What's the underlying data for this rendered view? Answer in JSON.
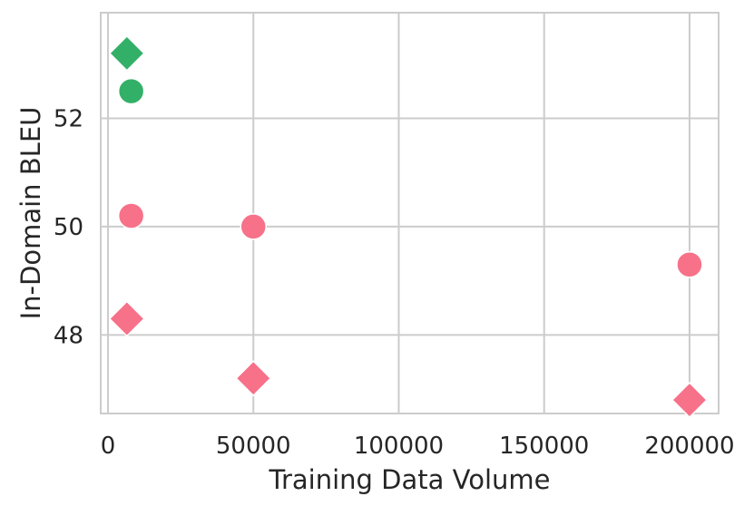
{
  "chart_data": {
    "type": "scatter",
    "title": "",
    "xlabel": "Training Data Volume",
    "ylabel": "In-Domain BLEU",
    "xlim": [
      -2500,
      210000
    ],
    "ylim": [
      46.55,
      53.95
    ],
    "xticks": [
      0,
      50000,
      100000,
      150000,
      200000
    ],
    "xtick_labels": [
      "0",
      "50000",
      "100000",
      "150000",
      "200000"
    ],
    "yticks": [
      48,
      50,
      52
    ],
    "ytick_labels": [
      "48",
      "50",
      "52"
    ],
    "grid": true,
    "legend": "none",
    "series": [
      {
        "color": "#f77189",
        "marker": "circle",
        "points": [
          {
            "x": 8000,
            "y": 50.2
          },
          {
            "x": 50000,
            "y": 50.0
          },
          {
            "x": 200000,
            "y": 49.3
          }
        ]
      },
      {
        "color": "#f77189",
        "marker": "diamond",
        "points": [
          {
            "x": 6500,
            "y": 48.3
          },
          {
            "x": 50000,
            "y": 47.2
          },
          {
            "x": 200000,
            "y": 46.8
          }
        ]
      },
      {
        "color": "#33b068",
        "marker": "circle",
        "points": [
          {
            "x": 8000,
            "y": 52.5
          }
        ]
      },
      {
        "color": "#33b068",
        "marker": "diamond",
        "points": [
          {
            "x": 6500,
            "y": 53.2
          }
        ]
      }
    ]
  }
}
